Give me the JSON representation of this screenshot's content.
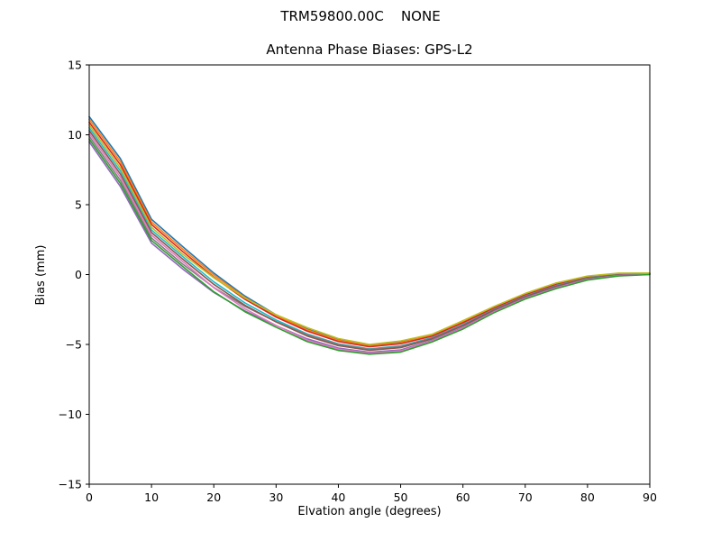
{
  "chart_data": {
    "type": "line",
    "suptitle": "TRM59800.00C    NONE",
    "title": "Antenna Phase Biases: GPS-L2",
    "xlabel": "Elvation angle (degrees)",
    "ylabel": "Bias (mm)",
    "xlim": [
      0,
      90
    ],
    "ylim": [
      -15,
      15
    ],
    "xticks": [
      0,
      10,
      20,
      30,
      40,
      50,
      60,
      70,
      80,
      90
    ],
    "yticks": [
      -15,
      -10,
      -5,
      0,
      5,
      10,
      15
    ],
    "grid": false,
    "legend_position": "none",
    "axes_color": "#000000",
    "background": "#ffffff",
    "x": [
      0,
      5,
      10,
      15,
      20,
      25,
      30,
      35,
      40,
      45,
      50,
      55,
      60,
      65,
      70,
      75,
      80,
      85,
      90
    ],
    "series": [
      {
        "name": "series-1",
        "color": "#1f77b4",
        "values": [
          11.3,
          8.3,
          3.95,
          2.0,
          0.11,
          -1.54,
          -2.88,
          -3.9,
          -4.66,
          -5.07,
          -4.83,
          -4.33,
          -3.36,
          -2.32,
          -1.39,
          -0.64,
          -0.14,
          0.08,
          0.09
        ]
      },
      {
        "name": "series-2",
        "color": "#ff7f0e",
        "values": [
          11.1,
          8.08,
          3.76,
          1.82,
          -0.03,
          -1.64,
          -2.94,
          -3.95,
          -4.7,
          -5.11,
          -4.87,
          -4.36,
          -3.39,
          -2.34,
          -1.41,
          -0.66,
          -0.15,
          0.07,
          0.09
        ]
      },
      {
        "name": "series-3",
        "color": "#d62728",
        "values": [
          10.9,
          7.86,
          3.58,
          1.65,
          -0.19,
          -1.77,
          -3.04,
          -4.05,
          -4.79,
          -5.17,
          -4.95,
          -4.41,
          -3.45,
          -2.39,
          -1.45,
          -0.7,
          -0.18,
          0.05,
          0.08
        ]
      },
      {
        "name": "series-4",
        "color": "#17becf",
        "values": [
          10.5,
          7.41,
          3.19,
          1.29,
          -0.52,
          -2.03,
          -3.25,
          -4.25,
          -4.96,
          -5.32,
          -5.11,
          -4.52,
          -3.57,
          -2.48,
          -1.53,
          -0.78,
          -0.24,
          0.01,
          0.06
        ]
      },
      {
        "name": "series-5",
        "color": "#7f7f7f",
        "values": [
          9.9,
          6.74,
          2.62,
          0.75,
          -0.92,
          -2.28,
          -3.37,
          -4.3,
          -5.0,
          -5.35,
          -5.15,
          -4.55,
          -3.6,
          -2.5,
          -1.55,
          -0.8,
          -0.25,
          0.0,
          0.05
        ]
      },
      {
        "name": "series-6",
        "color": "#8c564b",
        "values": [
          10.3,
          7.19,
          3.01,
          1.11,
          -0.7,
          -2.2,
          -3.39,
          -4.4,
          -5.09,
          -5.42,
          -5.23,
          -4.61,
          -3.66,
          -2.55,
          -1.59,
          -0.84,
          -0.28,
          -0.02,
          0.04
        ]
      },
      {
        "name": "series-7",
        "color": "#9467bd",
        "values": [
          9.5,
          6.3,
          2.25,
          0.4,
          -1.28,
          -2.6,
          -3.65,
          -4.6,
          -5.26,
          -5.56,
          -5.39,
          -4.72,
          -3.78,
          -2.64,
          -1.67,
          -0.92,
          -0.33,
          -0.06,
          0.02
        ]
      },
      {
        "name": "series-8",
        "color": "#e377c2",
        "values": [
          10.1,
          6.97,
          2.82,
          0.94,
          -0.94,
          -2.45,
          -3.64,
          -4.7,
          -5.34,
          -5.63,
          -5.47,
          -4.77,
          -3.84,
          -2.68,
          -1.71,
          -0.96,
          -0.36,
          -0.08,
          0.01
        ]
      },
      {
        "name": "series-9",
        "color": "#bcbd22",
        "values": [
          10.7,
          7.63,
          3.38,
          1.46,
          -0.23,
          -1.68,
          -2.88,
          -3.8,
          -4.58,
          -5.0,
          -4.75,
          -4.28,
          -3.3,
          -2.28,
          -1.35,
          -0.6,
          -0.11,
          0.1,
          0.1
        ]
      },
      {
        "name": "series-10",
        "color": "#2ca02c",
        "values": [
          9.7,
          6.52,
          2.44,
          0.58,
          -1.23,
          -2.66,
          -3.77,
          -4.8,
          -5.43,
          -5.7,
          -5.55,
          -4.83,
          -3.9,
          -2.73,
          -1.75,
          -1.0,
          -0.39,
          -0.1,
          0.0
        ]
      }
    ]
  }
}
